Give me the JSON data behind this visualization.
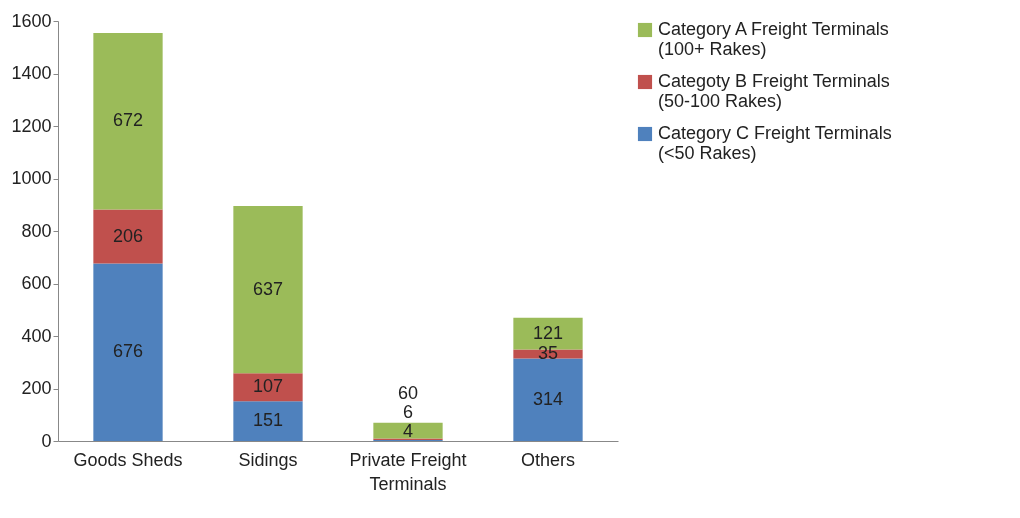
{
  "chart_data": {
    "type": "bar",
    "stacked": true,
    "data_labels": true,
    "legend": "right",
    "grid": false,
    "categories": [
      "Goods Sheds",
      "Sidings",
      "Private Freight Terminals",
      "Others"
    ],
    "series": [
      {
        "name": "Category C Freight Terminals (<50 Rakes)",
        "color": "#4f81bd",
        "values": [
          676,
          151,
          4,
          314
        ]
      },
      {
        "name": "Categoty B Freight Terminals (50-100 Rakes)",
        "color": "#c0504d",
        "values": [
          206,
          107,
          6,
          35
        ]
      },
      {
        "name": "Category A Freight Terminals (100+ Rakes)",
        "color": "#9bbb59",
        "values": [
          672,
          637,
          60,
          121
        ]
      }
    ],
    "ylim": [
      0,
      1600
    ],
    "yticks": [
      0,
      200,
      400,
      600,
      800,
      1000,
      1200,
      1400,
      1600
    ]
  }
}
